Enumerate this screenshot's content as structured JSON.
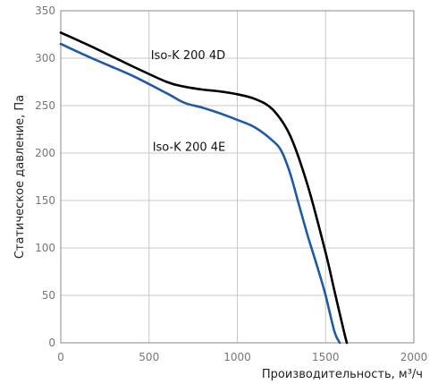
{
  "chart_data": {
    "type": "line",
    "xlabel": "Производительность, м³/ч",
    "ylabel": "Статическое давление, Па",
    "xlim": [
      0,
      2000
    ],
    "ylim": [
      0,
      350
    ],
    "xticks": [
      0,
      500,
      1000,
      1500,
      2000
    ],
    "yticks": [
      0,
      50,
      100,
      150,
      200,
      250,
      300,
      350
    ],
    "grid": true,
    "series": [
      {
        "name": "Iso-K 200 4D",
        "color": "#000000",
        "x": [
          0,
          200,
          400,
          600,
          700,
          800,
          900,
          1000,
          1100,
          1200,
          1300,
          1400,
          1500,
          1550,
          1600,
          1620
        ],
        "y": [
          327,
          310,
          292,
          275,
          270,
          267,
          265,
          262,
          257,
          246,
          218,
          165,
          95,
          55,
          15,
          0
        ]
      },
      {
        "name": "Iso-K 200 4E",
        "color": "#1f5aa6",
        "x": [
          0,
          200,
          400,
          600,
          700,
          800,
          900,
          1000,
          1100,
          1200,
          1250,
          1300,
          1350,
          1400,
          1450,
          1500,
          1550,
          1580
        ],
        "y": [
          315,
          298,
          282,
          263,
          253,
          248,
          242,
          235,
          227,
          213,
          202,
          178,
          145,
          112,
          82,
          50,
          12,
          0
        ]
      }
    ],
    "annotations": [
      {
        "text": "Iso-K 200 4D",
        "x": 510,
        "y": 303
      },
      {
        "text": "Iso-K 200 4E",
        "x": 520,
        "y": 206
      }
    ]
  }
}
